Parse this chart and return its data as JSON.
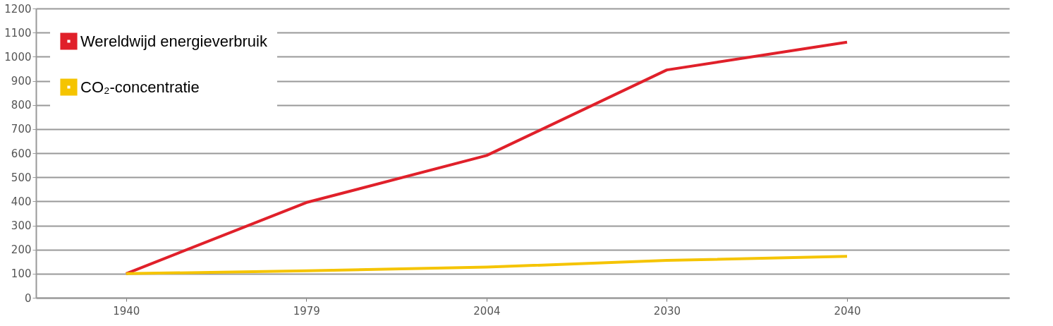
{
  "chart_data": {
    "type": "line",
    "categories": [
      "1940",
      "1979",
      "2004",
      "2030",
      "2040"
    ],
    "series": [
      {
        "name": "Wereldwijd energieverbruik",
        "color": "#e0202a",
        "values": [
          100,
          395,
          590,
          945,
          1060
        ]
      },
      {
        "name": "CO₂-concentratie",
        "color": "#f5c400",
        "values": [
          100,
          112,
          127,
          155,
          172
        ]
      }
    ],
    "ylim": [
      0,
      1200
    ],
    "yticks": [
      0,
      100,
      200,
      300,
      400,
      500,
      600,
      700,
      800,
      900,
      1000,
      1100,
      1200
    ],
    "grid": "y",
    "legend": "top left",
    "marker": "none",
    "line_style": "solid"
  }
}
